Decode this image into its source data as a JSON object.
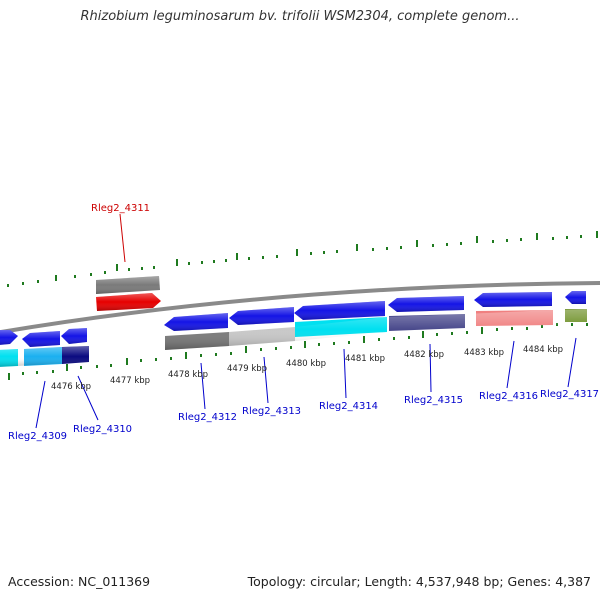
{
  "title": "Rhizobium leguminosarum bv. trifolii WSM2304, complete genom...",
  "footer": {
    "accession": "Accession: NC_011369",
    "summary": "Topology: circular; Length: 4,537,948 bp; Genes: 4,387"
  },
  "scale_labels": [
    "4476 kbp",
    "4477 kbp",
    "4478 kbp",
    "4479 kbp",
    "4480 kbp",
    "4481 kbp",
    "4482 kbp",
    "4483 kbp",
    "4484 kbp"
  ],
  "gene_labels": [
    {
      "text": "Rleg2_4311",
      "color": "#cc0000"
    },
    {
      "text": "Rleg2_4309",
      "color": "#0000cc"
    },
    {
      "text": "Rleg2_4310",
      "color": "#0000cc"
    },
    {
      "text": "Rleg2_4312",
      "color": "#0000cc"
    },
    {
      "text": "Rleg2_4313",
      "color": "#0000cc"
    },
    {
      "text": "Rleg2_4314",
      "color": "#0000cc"
    },
    {
      "text": "Rleg2_4315",
      "color": "#0000cc"
    },
    {
      "text": "Rleg2_4316",
      "color": "#0000cc"
    },
    {
      "text": "Rleg2_4317",
      "color": "#0000cc"
    }
  ],
  "colors": {
    "backbone": "#8a8a8a",
    "tick": "#1f7a1f",
    "gene_blue": "#1414e6",
    "gene_red": "#e60000",
    "gene_gray": "#7a7a7a",
    "gene_lightgray": "#c8c8c8",
    "gene_cyan": "#00e0f0",
    "gene_skyblue": "#1ab0f0",
    "gene_navy": "#0a0a80",
    "gene_slate": "#4a4a8c",
    "gene_salmon": "#f08080",
    "gene_olive": "#6b8e23"
  }
}
